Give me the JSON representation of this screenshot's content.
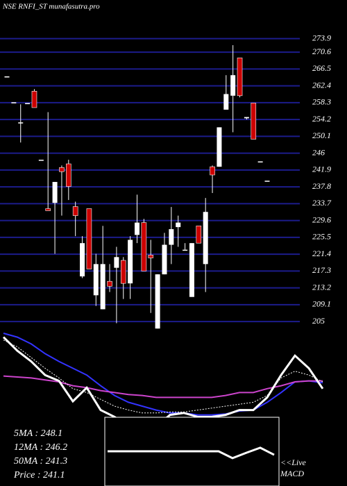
{
  "chart_data": [
    {
      "type": "candlestick",
      "title": "NSE RNFI_ST munafasutra.pro",
      "ylim": [
        203,
        283.3
      ],
      "yticks": [
        273.9,
        270.6,
        266.5,
        262.4,
        258.3,
        254.2,
        250.1,
        246,
        241.9,
        237.8,
        233.7,
        229.6,
        225.5,
        221.4,
        217.3,
        213.2,
        209.1,
        205
      ],
      "grid": true,
      "grid_color": "#1c1c8c",
      "up_color": "#ffffff",
      "down_color": "#cc0000",
      "open": [
        264.7,
        258.4,
        253.5,
        258.2,
        261.1,
        244.4,
        232.5,
        233.9,
        242.5,
        243.4,
        233.0,
        216.0,
        232.5,
        211.4,
        208.0,
        214.8,
        218.1,
        219.9,
        214.3,
        226.1,
        229.1,
        221.2,
        203.3,
        216.5,
        223.7,
        228.0,
        222.5,
        211.0,
        228.3,
        219.0,
        242.7,
        242.7,
        256.6,
        260.0,
        269.2,
        254.5,
        258.2,
        244.0,
        239.3
      ],
      "high": [
        264.7,
        258.4,
        257.9,
        258.2,
        261.6,
        244.4,
        256.0,
        239.0,
        243.0,
        244.4,
        234.2,
        225.8,
        232.5,
        221.5,
        228.3,
        219.0,
        223.2,
        220.7,
        225.8,
        235.9,
        230.0,
        224.9,
        216.5,
        226.6,
        232.9,
        230.8,
        224.1,
        224.1,
        228.3,
        235.1,
        243.0,
        252.3,
        265.0,
        272.3,
        269.2,
        254.8,
        258.2,
        244.0,
        239.3
      ],
      "low": [
        264.7,
        258.4,
        248.6,
        258.2,
        257.1,
        244.4,
        232.0,
        221.5,
        230.8,
        234.6,
        225.8,
        215.6,
        217.8,
        208.8,
        208.0,
        212.2,
        204.6,
        210.5,
        210.5,
        224.1,
        217.3,
        207.1,
        203.3,
        216.5,
        219.0,
        223.2,
        222.5,
        211.0,
        224.1,
        212.2,
        236.3,
        242.7,
        256.6,
        251.1,
        259.6,
        254.2,
        249.4,
        244.0,
        239.3
      ],
      "close": [
        264.7,
        258.4,
        253.5,
        258.2,
        257.1,
        244.4,
        232.0,
        239.0,
        241.5,
        237.9,
        230.8,
        224.1,
        217.8,
        219.0,
        219.0,
        213.6,
        220.7,
        214.3,
        224.9,
        229.1,
        217.3,
        220.5,
        216.5,
        223.7,
        227.5,
        229.1,
        222.5,
        224.1,
        224.1,
        231.7,
        240.7,
        252.3,
        260.4,
        265.0,
        260.0,
        254.8,
        249.4,
        244.0,
        239.3
      ]
    },
    {
      "type": "line",
      "ylim": [
        0,
        100
      ],
      "series": [
        {
          "color": "#3333ff",
          "values": [
            100,
            96,
            89,
            79,
            71,
            64,
            57,
            46,
            36,
            29,
            25,
            21,
            18,
            18,
            16,
            16,
            17,
            20,
            21,
            29,
            39,
            50,
            51,
            49
          ]
        },
        {
          "color": "#cc44cc",
          "values": [
            56,
            55,
            54,
            52,
            50,
            46,
            44,
            41,
            39,
            37,
            36,
            34,
            34,
            34,
            34,
            34,
            36,
            39,
            39,
            43,
            46,
            50,
            51,
            51
          ]
        },
        {
          "color": "#ffffff",
          "dash": true,
          "values": [
            93,
            86,
            75,
            64,
            54,
            43,
            39,
            32,
            25,
            21,
            18,
            18,
            19,
            19,
            21,
            23,
            25,
            27,
            29,
            36,
            54,
            61,
            57,
            50
          ]
        },
        {
          "color": "#ffffff",
          "values": [
            96,
            82,
            71,
            57,
            51,
            30,
            44,
            21,
            14,
            4,
            0,
            4,
            16,
            18,
            14,
            14,
            16,
            21,
            21,
            34,
            57,
            77,
            64,
            43
          ]
        }
      ]
    },
    {
      "type": "line",
      "title": [
        "<<Live",
        "MACD"
      ],
      "ylim": [
        -10,
        10
      ],
      "series": [
        {
          "color": "#ffffff",
          "values": [
            0,
            0,
            0,
            0,
            0,
            0,
            0,
            0,
            0,
            -3.3,
            -0.7,
            1.7,
            -1.7
          ]
        }
      ]
    }
  ],
  "stats": [
    {
      "label": "5MA",
      "value": 248.1
    },
    {
      "label": "12MA",
      "value": 246.2
    },
    {
      "label": "50MA",
      "value": 241.3
    },
    {
      "label": "Price",
      "value": 241.1
    }
  ]
}
